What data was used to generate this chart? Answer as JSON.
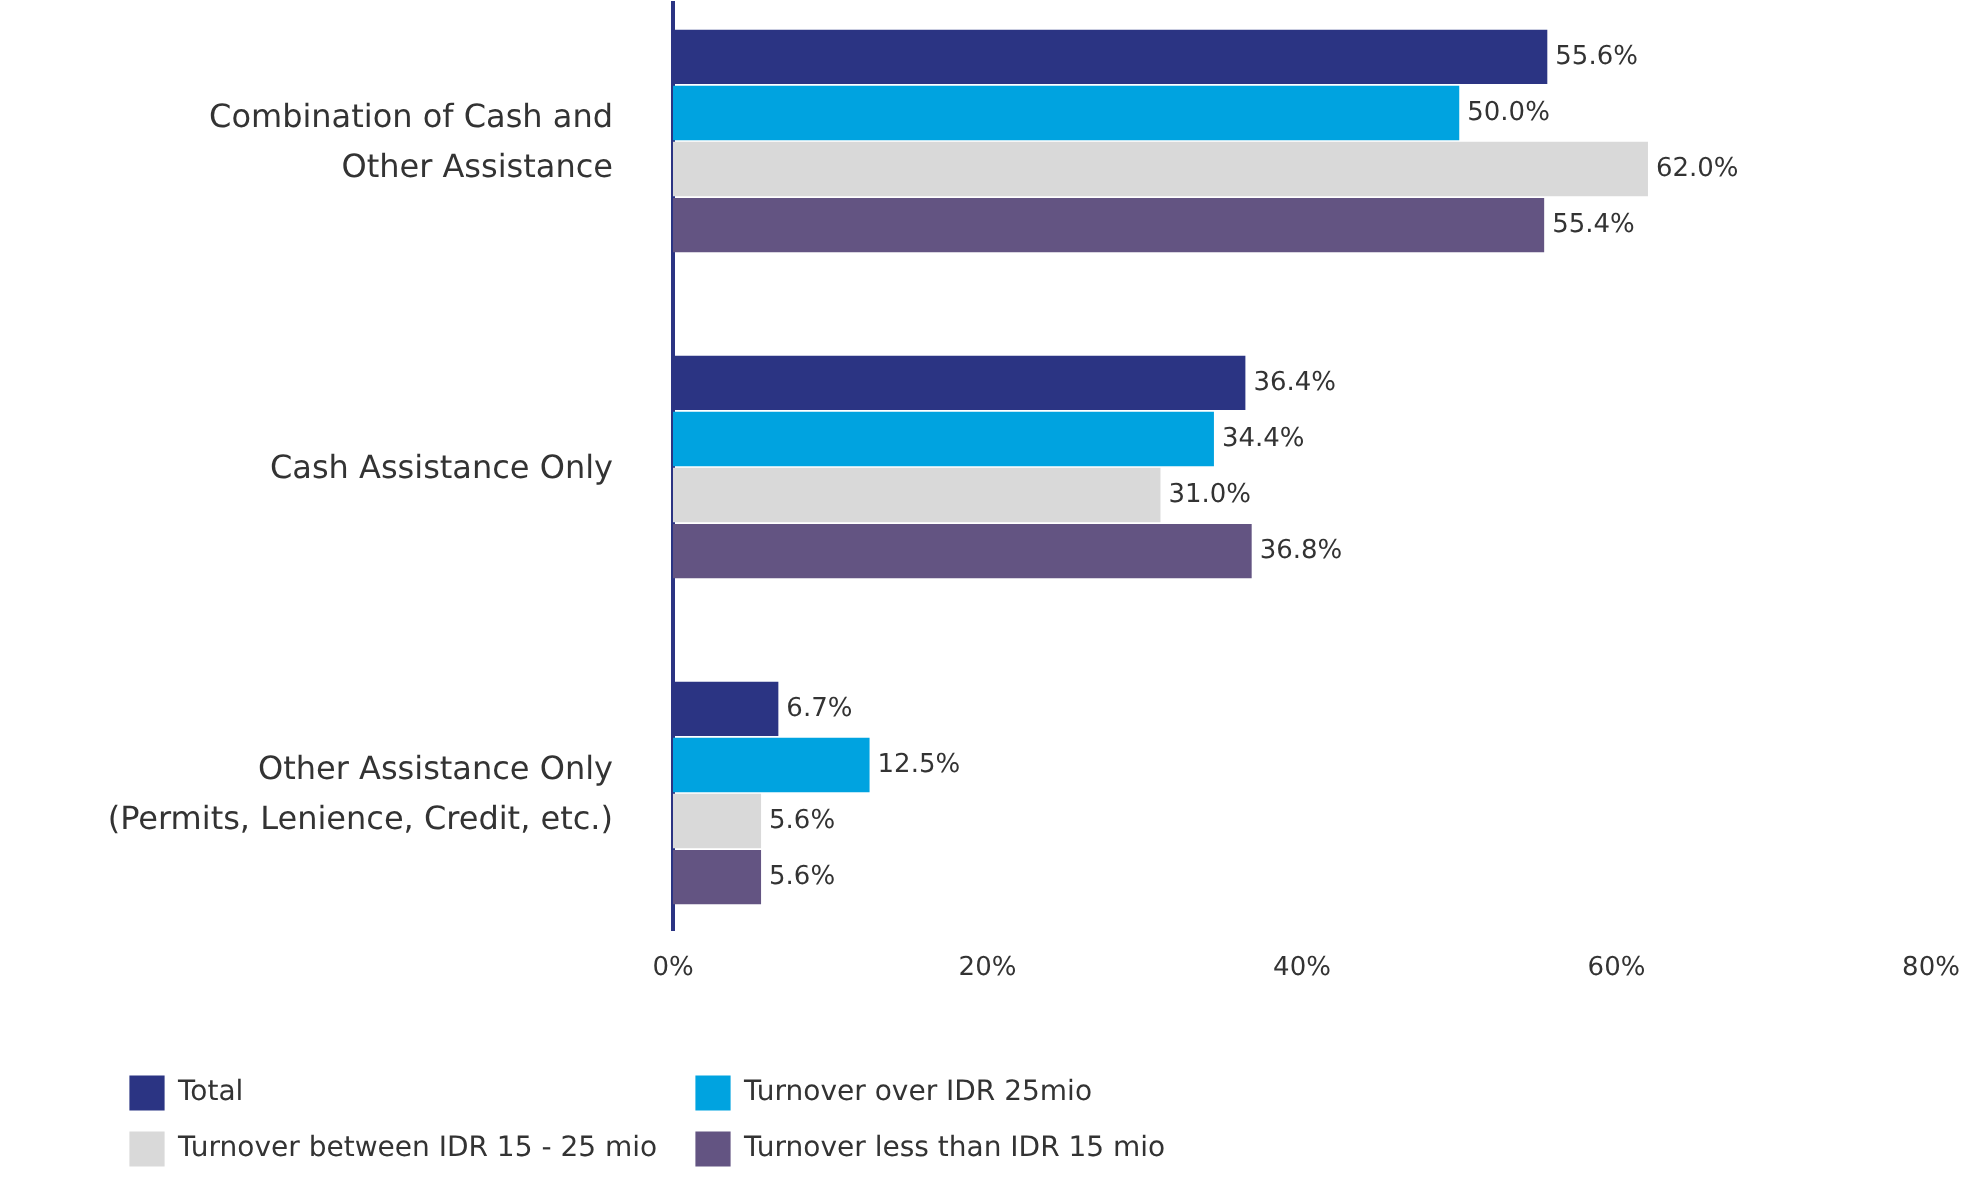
{
  "chart_data": {
    "type": "bar",
    "orientation": "horizontal",
    "categories": [
      "Combination of Cash and\nOther Assistance",
      "Cash Assistance Only",
      "Other Assistance Only\n(Permits, Lenience, Credit, etc.)"
    ],
    "series": [
      {
        "name": "Total",
        "color": "#2b3483",
        "values": [
          55.6,
          36.4,
          6.7
        ],
        "value_labels": [
          "55.6%",
          "36.4%",
          "6.7%"
        ]
      },
      {
        "name": "Turnover over IDR 25mio",
        "color": "#00a3e0",
        "values": [
          50.0,
          34.4,
          12.5
        ],
        "value_labels": [
          "50.0%",
          "34.4%",
          "12.5%"
        ]
      },
      {
        "name": "Turnover between IDR 15 - 25 mio",
        "color": "#d9d9d9",
        "values": [
          62.0,
          31.0,
          5.6
        ],
        "value_labels": [
          "62.0%",
          "31.0%",
          "5.6%"
        ]
      },
      {
        "name": "Turnover less than IDR 15 mio",
        "color": "#635482",
        "values": [
          55.4,
          36.8,
          5.6
        ],
        "value_labels": [
          "55.4%",
          "36.8%",
          "5.6%"
        ]
      }
    ],
    "xlim": [
      0,
      80
    ],
    "xticks": [
      {
        "value": 0,
        "label": "0%"
      },
      {
        "value": 20,
        "label": "20%"
      },
      {
        "value": 40,
        "label": "40%"
      },
      {
        "value": 60,
        "label": "60%"
      },
      {
        "value": 80,
        "label": "80%"
      }
    ],
    "grid": false,
    "legend": "bottom"
  }
}
